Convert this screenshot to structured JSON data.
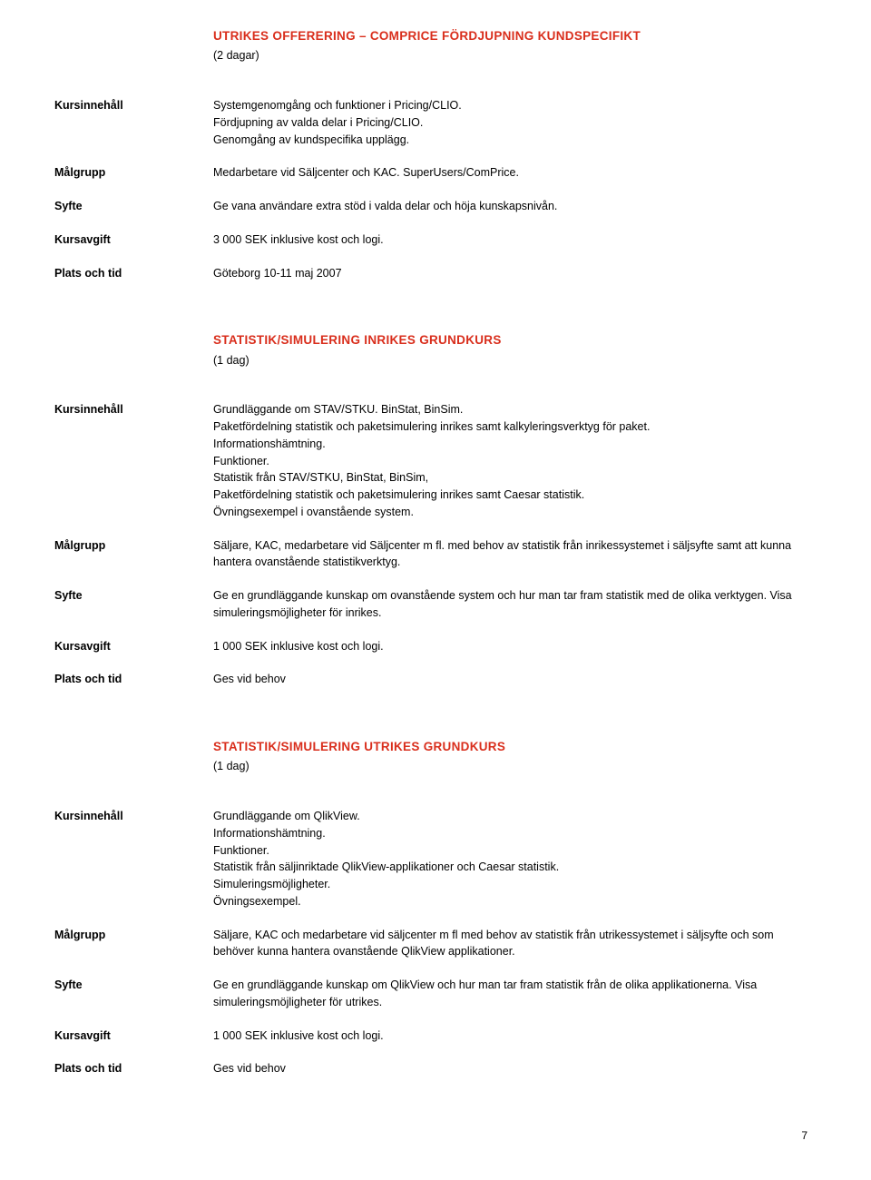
{
  "labels": {
    "kursinnehall": "Kursinnehåll",
    "malgrupp": "Målgrupp",
    "syfte": "Syfte",
    "kursavgift": "Kursavgift",
    "plats": "Plats och tid"
  },
  "course1": {
    "title": "UTRIKES OFFERERING – COMPRICE FÖRDJUPNING KUNDSPECIFIKT",
    "duration": "(2 dagar)",
    "kursinnehall_l1": "Systemgenomgång och funktioner i Pricing/CLIO.",
    "kursinnehall_l2": "Fördjupning av valda delar i Pricing/CLIO.",
    "kursinnehall_l3": "Genomgång av  kundspecifika upplägg.",
    "malgrupp": "Medarbetare vid Säljcenter och KAC. SuperUsers/ComPrice.",
    "syfte": "Ge vana användare extra stöd i valda delar och höja kunskapsnivån.",
    "kursavgift": "3 000 SEK inklusive kost och logi.",
    "plats": "Göteborg 10-11 maj 2007"
  },
  "course2": {
    "title": "STATISTIK/SIMULERING INRIKES GRUNDKURS",
    "duration": "(1 dag)",
    "kursinnehall_l1": "Grundläggande om STAV/STKU. BinStat, BinSim.",
    "kursinnehall_l2": "Paketfördelning statistik och paketsimulering inrikes samt kalkyleringsverktyg för paket.",
    "kursinnehall_l3": "Informationshämtning.",
    "kursinnehall_l4": "Funktioner.",
    "kursinnehall_l5": "Statistik från STAV/STKU, BinStat, BinSim,",
    "kursinnehall_l6": "Paketfördelning statistik och paketsimulering inrikes samt Caesar statistik.",
    "kursinnehall_l7": "Övningsexempel i ovanstående system.",
    "malgrupp": "Säljare, KAC, medarbetare vid Säljcenter m fl. med behov av statistik från inrikessystemet i säljsyfte samt att kunna hantera ovanstående statistikverktyg.",
    "syfte": "Ge en grundläggande kunskap om ovanstående system och hur man tar fram statistik med de olika verktygen. Visa simuleringsmöjligheter för inrikes.",
    "kursavgift": "1 000 SEK  inklusive kost och logi.",
    "plats": "Ges vid behov"
  },
  "course3": {
    "title": "STATISTIK/SIMULERING UTRIKES GRUNDKURS",
    "duration": "(1 dag)",
    "kursinnehall_l1": "Grundläggande om QlikView.",
    "kursinnehall_l2": "Informationshämtning.",
    "kursinnehall_l3": "Funktioner.",
    "kursinnehall_l4": "Statistik från säljinriktade QlikView-applikationer och Caesar statistik.",
    "kursinnehall_l5": "Simuleringsmöjligheter.",
    "kursinnehall_l6": "Övningsexempel.",
    "malgrupp": "Säljare, KAC och medarbetare vid säljcenter m fl med behov av statistik från utrikessystemet i säljsyfte och som behöver kunna hantera ovanstående QlikView applikationer.",
    "syfte": "Ge en grundläggande kunskap om QlikView och hur man tar fram statistik från de olika applikationerna. Visa simuleringsmöjligheter för utrikes.",
    "kursavgift": "1 000 SEK  inklusive kost och logi.",
    "plats": "Ges vid behov"
  },
  "page_number": "7"
}
